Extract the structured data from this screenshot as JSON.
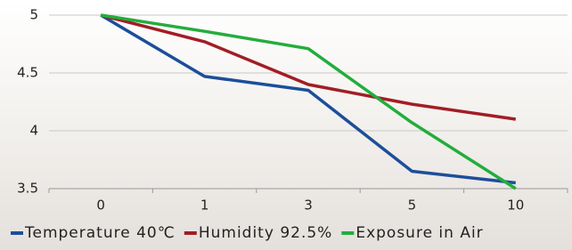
{
  "chart_data": {
    "type": "line",
    "categories": [
      "0",
      "1",
      "3",
      "5",
      "10"
    ],
    "series": [
      {
        "name": "Temperature 40℃",
        "color": "#1d4e9a",
        "values": [
          5,
          4.47,
          4.35,
          3.65,
          3.55
        ]
      },
      {
        "name": "Humidity 92.5%",
        "color": "#a21d25",
        "values": [
          5,
          4.77,
          4.4,
          4.23,
          4.1
        ]
      },
      {
        "name": "Exposure in Air",
        "color": "#23ad3c",
        "values": [
          5,
          4.86,
          4.71,
          4.07,
          3.5
        ]
      }
    ],
    "ylim": [
      3.5,
      5
    ],
    "yticks": [
      3.5,
      4,
      4.5,
      5
    ],
    "grid": true,
    "legend": "bottom"
  }
}
